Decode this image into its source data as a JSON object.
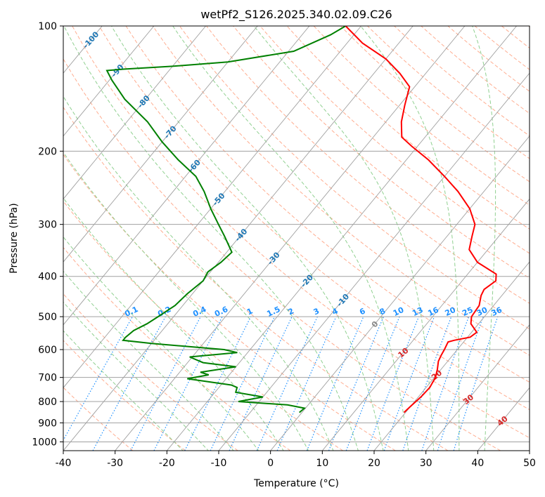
{
  "chart_data": {
    "type": "skew-t",
    "title": "wetPf2_S126.2025.340.02.09.C26",
    "xlabel": "Temperature (°C)",
    "ylabel": "Pressure (hPa)",
    "xlim": [
      -40,
      50
    ],
    "ylim": [
      1050,
      100
    ],
    "x_ticks": [
      "-40",
      "-30",
      "-20",
      "-10",
      "0",
      "10",
      "20",
      "30",
      "40",
      "50"
    ],
    "y_ticks": [
      "100",
      "200",
      "300",
      "400",
      "500",
      "600",
      "700",
      "800",
      "900",
      "1000"
    ],
    "colors": {
      "temperature": "#ff0000",
      "dewpoint": "#008000",
      "isotherm": "#a0a0a0",
      "dry_adiabat": "#ffad90",
      "moist_adiabat": "#90d090",
      "mixing_ratio": "#1e90ff",
      "isotherm_label": "#1f77b4",
      "dry_label": "#d62728"
    },
    "isotherm_labels": [
      {
        "t": -100,
        "p": 108,
        "text": "-100"
      },
      {
        "t": -90,
        "p": 128,
        "text": "-90"
      },
      {
        "t": -80,
        "p": 152,
        "text": "-80"
      },
      {
        "t": -70,
        "p": 180,
        "text": "-70"
      },
      {
        "t": -60,
        "p": 217,
        "text": "-60"
      },
      {
        "t": -50,
        "p": 261,
        "text": "-50"
      },
      {
        "t": -40,
        "p": 318,
        "text": "-40"
      },
      {
        "t": -30,
        "p": 362,
        "text": "-30"
      },
      {
        "t": -20,
        "p": 410,
        "text": "-20"
      },
      {
        "t": -10,
        "p": 456,
        "text": "-10"
      },
      {
        "t": 0,
        "p": 521,
        "text": "0"
      }
    ],
    "mixing_ratio_labels": [
      "0.1",
      "0.2",
      "0.4",
      "0.6",
      "1",
      "1.5",
      "2",
      "3",
      "4",
      "6",
      "8",
      "10",
      "13",
      "16",
      "20",
      "25",
      "30",
      "36"
    ],
    "mixing_ratio_values": [
      0.1,
      0.2,
      0.4,
      0.6,
      1,
      1.5,
      2,
      3,
      4,
      6,
      8,
      10,
      13,
      16,
      20,
      25,
      30,
      36
    ],
    "dry_adiabat_labels": [
      {
        "t": 10,
        "p": 610,
        "text": "10"
      },
      {
        "t": 20,
        "p": 690,
        "text": "20"
      },
      {
        "t": 30,
        "p": 790,
        "text": "30"
      },
      {
        "t": 40,
        "p": 890,
        "text": "40"
      }
    ],
    "temperature_profile": [
      [
        850,
        19.7
      ],
      [
        820,
        20.0
      ],
      [
        780,
        20.5
      ],
      [
        740,
        20.7
      ],
      [
        700,
        20.2
      ],
      [
        670,
        19.3
      ],
      [
        640,
        18.2
      ],
      [
        620,
        17.8
      ],
      [
        600,
        17.5
      ],
      [
        575,
        17.0
      ],
      [
        570,
        17.9
      ],
      [
        560,
        20.5
      ],
      [
        545,
        21.0
      ],
      [
        520,
        18.5
      ],
      [
        500,
        17.5
      ],
      [
        470,
        17.2
      ],
      [
        445,
        16.0
      ],
      [
        430,
        15.6
      ],
      [
        410,
        16.5
      ],
      [
        395,
        15.5
      ],
      [
        370,
        10.0
      ],
      [
        345,
        6.4
      ],
      [
        320,
        4.8
      ],
      [
        300,
        3.5
      ],
      [
        275,
        0.0
      ],
      [
        250,
        -5.0
      ],
      [
        230,
        -10.0
      ],
      [
        210,
        -15.7
      ],
      [
        195,
        -21.0
      ],
      [
        185,
        -24.5
      ],
      [
        170,
        -27.0
      ],
      [
        155,
        -29.0
      ],
      [
        140,
        -31.0
      ],
      [
        130,
        -35.0
      ],
      [
        120,
        -40.0
      ],
      [
        110,
        -47.0
      ],
      [
        100,
        -53.0
      ]
    ],
    "dewpoint_profile": [
      [
        850,
        -0.5
      ],
      [
        830,
        -0.2
      ],
      [
        815,
        -4.0
      ],
      [
        800,
        -14.0
      ],
      [
        780,
        -10.0
      ],
      [
        760,
        -16.0
      ],
      [
        740,
        -16.5
      ],
      [
        730,
        -18.0
      ],
      [
        705,
        -27.5
      ],
      [
        690,
        -24.0
      ],
      [
        680,
        -26.0
      ],
      [
        660,
        -20.0
      ],
      [
        645,
        -27.0
      ],
      [
        625,
        -30.5
      ],
      [
        610,
        -22.0
      ],
      [
        600,
        -25.0
      ],
      [
        580,
        -40.0
      ],
      [
        570,
        -46.0
      ],
      [
        560,
        -46.0
      ],
      [
        540,
        -45.5
      ],
      [
        520,
        -44.0
      ],
      [
        500,
        -43.0
      ],
      [
        470,
        -41.5
      ],
      [
        440,
        -41.0
      ],
      [
        410,
        -40.0
      ],
      [
        390,
        -40.5
      ],
      [
        370,
        -39.5
      ],
      [
        350,
        -39.0
      ],
      [
        320,
        -43.0
      ],
      [
        300,
        -46.0
      ],
      [
        275,
        -50.0
      ],
      [
        250,
        -54.0
      ],
      [
        230,
        -58.0
      ],
      [
        210,
        -64.0
      ],
      [
        190,
        -70.0
      ],
      [
        170,
        -76.0
      ],
      [
        150,
        -84.0
      ],
      [
        135,
        -89.5
      ],
      [
        128,
        -92.0
      ],
      [
        127,
        -89.0
      ],
      [
        125,
        -80.0
      ],
      [
        122,
        -70.0
      ],
      [
        115,
        -59.0
      ],
      [
        105,
        -54.5
      ],
      [
        100,
        -53.0
      ]
    ]
  }
}
